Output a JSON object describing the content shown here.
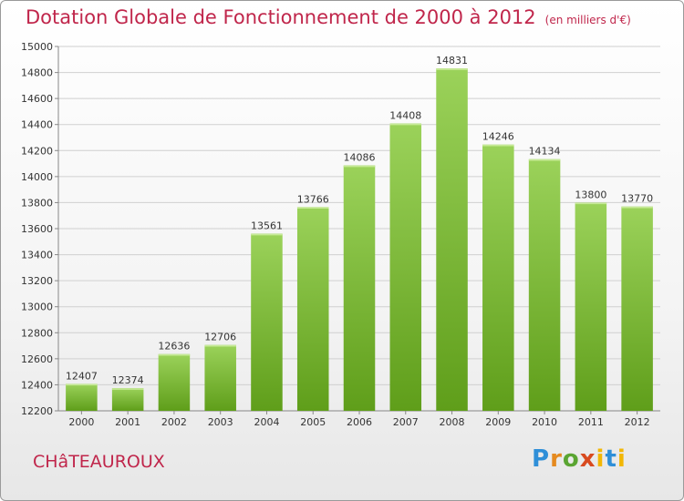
{
  "title": "Dotation Globale de Fonctionnement de 2000 à 2012",
  "unit": "(en milliers d'€)",
  "commune": "CHâTEAUROUX",
  "logo": {
    "p": "P",
    "r": "r",
    "o": "o",
    "x": "x",
    "i": "i",
    "t": "t",
    "i2": "i"
  },
  "colors": {
    "bar_top": "#9bd25a",
    "bar_bottom": "#5f9e1a",
    "title": "#c0264b"
  },
  "chart_data": {
    "type": "bar",
    "title": "Dotation Globale de Fonctionnement de 2000 à 2012",
    "categories": [
      "2000",
      "2001",
      "2002",
      "2003",
      "2004",
      "2005",
      "2006",
      "2007",
      "2008",
      "2009",
      "2010",
      "2011",
      "2012"
    ],
    "values": [
      12407,
      12374,
      12636,
      12706,
      13561,
      13766,
      14086,
      14408,
      14831,
      14246,
      14134,
      13800,
      13770
    ],
    "ylim": [
      12200,
      15000
    ],
    "yticks": [
      12200,
      12400,
      12600,
      12800,
      13000,
      13200,
      13400,
      13600,
      13800,
      14000,
      14200,
      14400,
      14600,
      14800,
      15000
    ],
    "grid": true,
    "legend": "none"
  }
}
